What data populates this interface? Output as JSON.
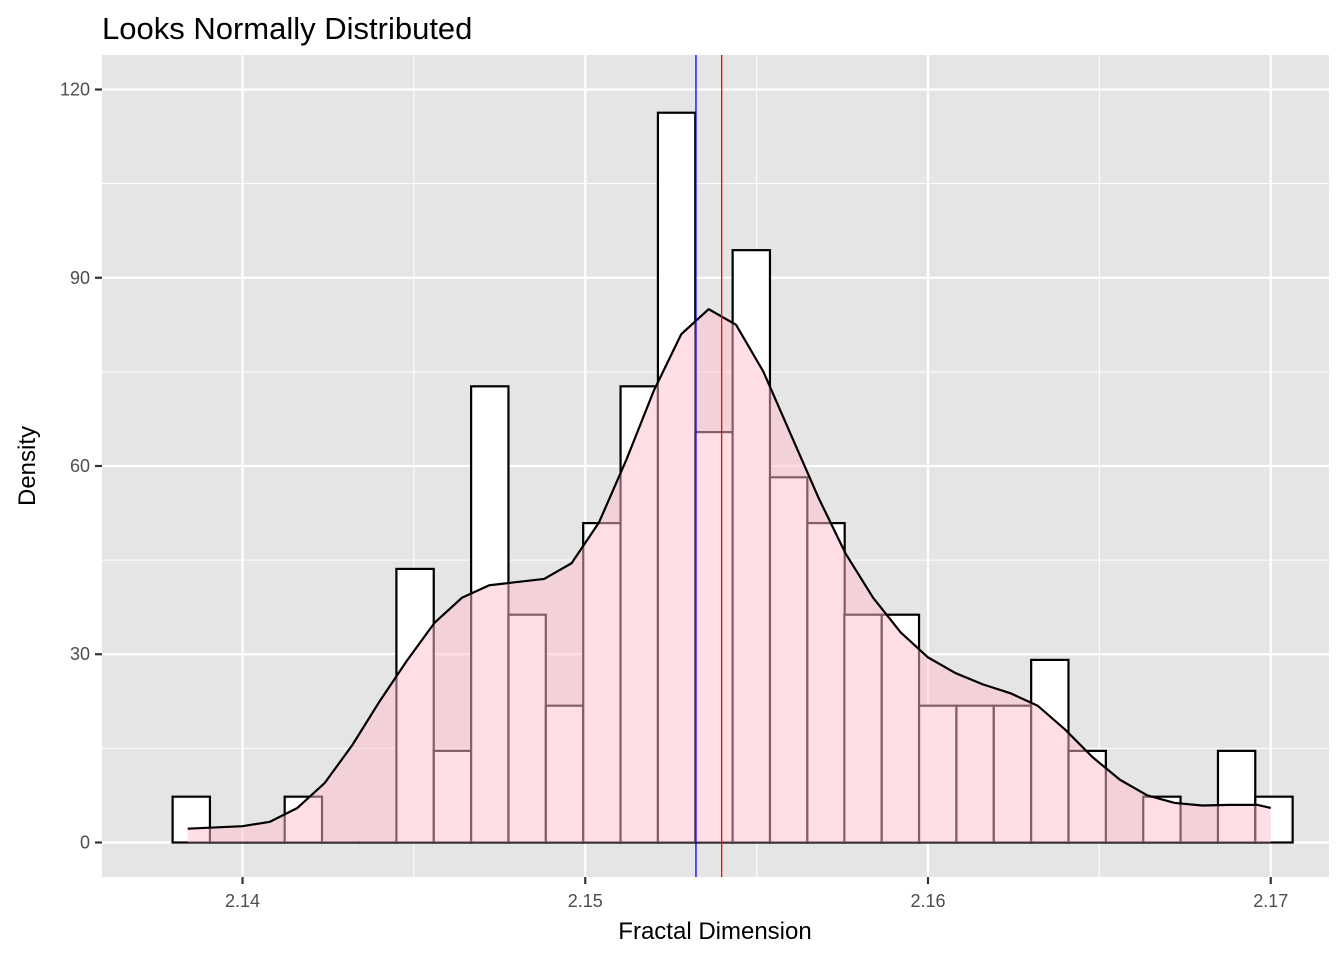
{
  "chart_data": {
    "type": "bar",
    "title": "Looks Normally Distributed",
    "xlabel": "Fractal Dimension",
    "ylabel": "Density",
    "xlim": [
      2.1359,
      2.1717
    ],
    "ylim": [
      -5.5,
      125.5
    ],
    "x_ticks": [
      2.14,
      2.15,
      2.16,
      2.17
    ],
    "x_tick_labels": [
      "2.14",
      "2.15",
      "2.16",
      "2.17"
    ],
    "y_ticks": [
      0,
      30,
      60,
      90,
      120
    ],
    "y_tick_labels": [
      "0",
      "30",
      "60",
      "90",
      "120"
    ],
    "grid": true,
    "legend": "none",
    "histogram": {
      "bin_width": 0.001089,
      "bin_starts": [
        2.13796,
        2.13905,
        2.14014,
        2.14123,
        2.14232,
        2.14341,
        2.14449,
        2.14558,
        2.14667,
        2.14776,
        2.14885,
        2.14994,
        2.15103,
        2.15212,
        2.15321,
        2.1543,
        2.15539,
        2.15648,
        2.15756,
        2.15865,
        2.15974,
        2.16083,
        2.16192,
        2.16301,
        2.1641,
        2.16519,
        2.16628,
        2.16737,
        2.16846,
        2.16955
      ],
      "density": [
        7.3,
        0,
        0,
        7.3,
        0,
        0,
        43.6,
        14.6,
        72.7,
        36.3,
        21.8,
        50.9,
        72.7,
        116.3,
        65.4,
        94.4,
        58.2,
        50.9,
        36.3,
        36.3,
        21.8,
        21.8,
        21.8,
        29.1,
        14.6,
        0,
        7.3,
        0,
        14.6,
        7.3
      ],
      "fill": "#ffffff",
      "outline": "#000000"
    },
    "density_curve": {
      "x": [
        2.1384,
        2.1392,
        2.14,
        2.1408,
        2.1416,
        2.1424,
        2.1432,
        2.144,
        2.1448,
        2.1456,
        2.1464,
        2.1472,
        2.148,
        2.1488,
        2.1496,
        2.1504,
        2.1512,
        2.152,
        2.1528,
        2.1536,
        2.1544,
        2.1552,
        2.156,
        2.1568,
        2.1576,
        2.1584,
        2.1592,
        2.16,
        2.1608,
        2.1616,
        2.1624,
        2.1632,
        2.164,
        2.1648,
        2.1656,
        2.1664,
        2.1672,
        2.168,
        2.1688,
        2.1696,
        2.17
      ],
      "y": [
        2.2,
        2.4,
        2.6,
        3.3,
        5.5,
        9.5,
        15.5,
        22.5,
        29,
        35,
        39,
        41,
        41.5,
        42,
        44.5,
        51,
        61,
        72,
        81,
        85,
        82.5,
        75,
        65,
        55,
        46,
        39,
        33.5,
        29.5,
        27,
        25.2,
        23.8,
        21.8,
        18,
        13.6,
        10,
        7.5,
        6.3,
        5.9,
        6,
        6,
        5.5
      ],
      "fill": "#ffc0cb",
      "fill_opacity": 0.5,
      "stroke": "#000000"
    },
    "reference_lines": [
      {
        "x": 2.15323,
        "color": "#0000ff"
      },
      {
        "x": 2.15398,
        "color": "#ff0000"
      }
    ]
  }
}
